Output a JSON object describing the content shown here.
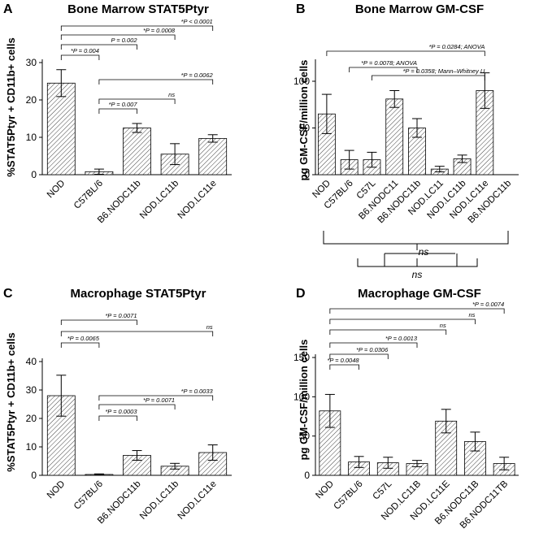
{
  "chart_data": [
    {
      "id": "A",
      "panel_label": "A",
      "type": "bar",
      "title": "Bone Marrow STAT5Ptyr",
      "ylabel": "%STAT5Ptyr + CD11b+ cells",
      "ylim": [
        0,
        30
      ],
      "yticks": [
        "0",
        "10",
        "20",
        "30"
      ],
      "categories": [
        "NOD",
        "C57BL/6",
        "B6.NODC11b",
        "NOD.LC11b",
        "NOD.LC11e"
      ],
      "values": [
        24.5,
        0.8,
        12.5,
        5.5,
        9.7
      ],
      "errors": [
        3.6,
        0.7,
        1.2,
        2.8,
        1.0
      ],
      "annotations": [
        {
          "text": "*P = 0.004",
          "from": 0,
          "to": 1
        },
        {
          "text": "P = 0.002",
          "from": 0,
          "to": 2
        },
        {
          "text": "*P = 0.0008",
          "from": 0,
          "to": 3
        },
        {
          "text": "*P < 0.0001",
          "from": 0,
          "to": 4
        },
        {
          "text": "*P = 0.0062",
          "from": 1,
          "to": 4
        },
        {
          "text": "ns",
          "from": 1,
          "to": 3
        },
        {
          "text": "*P = 0.007",
          "from": 1,
          "to": 2
        }
      ]
    },
    {
      "id": "B",
      "panel_label": "B",
      "type": "bar",
      "title": "Bone Marrow GM-CSF",
      "ylabel": "pg GM-CSF/million cells",
      "ylim": [
        0,
        120
      ],
      "yticks": [
        "0",
        "50",
        "100"
      ],
      "categories": [
        "NOD",
        "C57BL/6",
        "C57L",
        "B6.NODC11",
        "B6.NODC11b",
        "NOD.LC11",
        "NOD.LC11b",
        "NOD.LC11e",
        "B6.NODC11b"
      ],
      "values": [
        65,
        16,
        16,
        81,
        50,
        6,
        17,
        90,
        0
      ],
      "errors": [
        21,
        10,
        8,
        9,
        10,
        3,
        4,
        19,
        0
      ],
      "annotations": [
        {
          "text": "*P = 0.0284; ANOVA",
          "from": 0,
          "to": 7
        },
        {
          "text": "*P = 0.0078; ANOVA",
          "from": 1,
          "to": 4
        },
        {
          "text": "*P = 0.0358; Mann–Whitney U",
          "from": 2,
          "to": 7
        }
      ],
      "bottom_annotations": [
        "ns",
        "ns"
      ]
    },
    {
      "id": "C",
      "panel_label": "C",
      "type": "bar",
      "title": "Macrophage STAT5Ptyr",
      "ylabel": "%STAT5Ptyr + CD11b+ cells",
      "ylim": [
        0,
        40
      ],
      "yticks": [
        "0",
        "10",
        "20",
        "30",
        "40"
      ],
      "categories": [
        "NOD",
        "C57BL/6",
        "B6.NODC11b",
        "NOD.LC11b",
        "NOD.LC11e"
      ],
      "values": [
        28,
        0.3,
        7,
        3.2,
        8
      ],
      "errors": [
        7.2,
        0.2,
        1.7,
        1.0,
        2.7
      ],
      "annotations": [
        {
          "text": "*P = 0.0071",
          "from": 0,
          "to": 2
        },
        {
          "text": "ns",
          "from": 0,
          "to": 4
        },
        {
          "text": "*P = 0.0065",
          "from": 0,
          "to": 1
        },
        {
          "text": "*P = 0.0033",
          "from": 1,
          "to": 4
        },
        {
          "text": "*P = 0.0071",
          "from": 1,
          "to": 3
        },
        {
          "text": "*P = 0.0003",
          "from": 1,
          "to": 2
        }
      ]
    },
    {
      "id": "D",
      "panel_label": "D",
      "type": "bar",
      "title": "Macrophage GM-CSF",
      "ylabel": "pg GM-CSF/million cells",
      "ylim": [
        0,
        150
      ],
      "yticks": [
        "0",
        "50",
        "100",
        "150"
      ],
      "categories": [
        "NOD",
        "C57BL/6",
        "C57L",
        "NOD.LC11B",
        "NOD.LC11E",
        "B6.NODC11B",
        "B6.NODC11TB"
      ],
      "values": [
        82,
        17,
        16,
        15,
        69,
        43,
        15
      ],
      "errors": [
        21,
        7,
        7,
        4,
        15,
        12,
        8
      ],
      "annotations": [
        {
          "text": "*P = 0.0074",
          "from": 0,
          "to": 6
        },
        {
          "text": "ns",
          "from": 0,
          "to": 5
        },
        {
          "text": "ns",
          "from": 0,
          "to": 4
        },
        {
          "text": "*P = 0.0013",
          "from": 0,
          "to": 3
        },
        {
          "text": "*P = 0.0306",
          "from": 0,
          "to": 2
        },
        {
          "text": "*P = 0.0048",
          "from": 0,
          "to": 1
        }
      ]
    }
  ]
}
